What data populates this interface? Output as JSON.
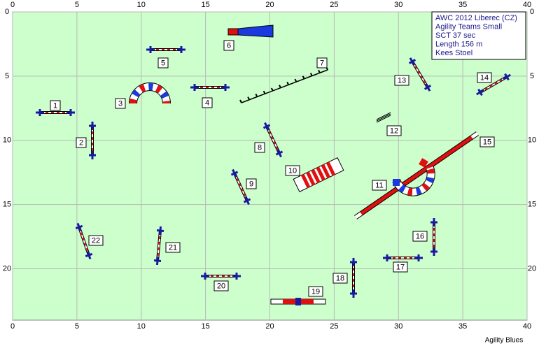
{
  "axes": {
    "xticks": [
      0,
      5,
      10,
      15,
      20,
      25,
      30,
      35,
      40
    ],
    "yticks": [
      0,
      5,
      10,
      15,
      20
    ]
  },
  "info": [
    "AWC 2012 Liberec (CZ)",
    "Agility Teams Small",
    "SCT 37 sec",
    "Length 156 m",
    "Kees Stoel"
  ],
  "obstacles": [
    "1",
    "2",
    "3",
    "4",
    "5",
    "6",
    "7",
    "8",
    "9",
    "10",
    "11",
    "12",
    "13",
    "14",
    "15",
    "16",
    "17",
    "18",
    "19",
    "20",
    "21",
    "22"
  ],
  "footer": "Agility Blues"
}
